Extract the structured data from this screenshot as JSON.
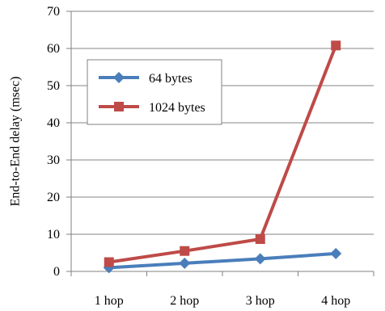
{
  "chart_data": {
    "type": "line",
    "categories": [
      "1 hop",
      "2 hop",
      "3 hop",
      "4 hop"
    ],
    "series": [
      {
        "name": "64 bytes",
        "values": [
          1.0,
          2.2,
          3.4,
          4.8
        ],
        "color": "#4a7ebb",
        "marker": "diamond"
      },
      {
        "name": "1024 bytes",
        "values": [
          2.5,
          5.5,
          8.7,
          60.8
        ],
        "color": "#be4b48",
        "marker": "square"
      }
    ],
    "title": "",
    "xlabel": "",
    "ylabel": "End-to-End delay (msec)",
    "ylim": [
      0,
      70
    ],
    "yticks": [
      0,
      10,
      20,
      30,
      40,
      50,
      60,
      70
    ],
    "grid": "horizontal",
    "legend_position": "top-left"
  }
}
